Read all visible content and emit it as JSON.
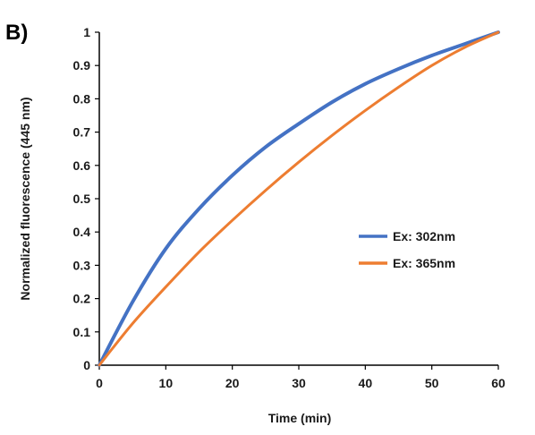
{
  "panel_label": "B)",
  "chart_data": {
    "type": "line",
    "title": "",
    "xlabel": "Time (min)",
    "ylabel": "Normalized fluorescence (445 nm)",
    "xlim": [
      0,
      60
    ],
    "ylim": [
      0,
      1
    ],
    "x_ticks": [
      0,
      10,
      20,
      30,
      40,
      50,
      60
    ],
    "y_ticks": [
      0,
      0.1,
      0.2,
      0.3,
      0.4,
      0.5,
      0.6,
      0.7,
      0.8,
      0.9,
      1
    ],
    "y_tick_labels": [
      "0",
      "0.1",
      "0.2",
      "0.3",
      "0.4",
      "0.5",
      "0.6",
      "0.7",
      "0.8",
      "0.9",
      "1"
    ],
    "grid": false,
    "legend_position": "center-right",
    "series": [
      {
        "name": "Ex: 302nm",
        "color": "#4472C4",
        "x": [
          0,
          5,
          10,
          15,
          20,
          25,
          30,
          35,
          40,
          45,
          50,
          55,
          60
        ],
        "y": [
          0,
          0.19,
          0.35,
          0.47,
          0.57,
          0.655,
          0.725,
          0.79,
          0.845,
          0.89,
          0.93,
          0.965,
          1.0
        ]
      },
      {
        "name": "Ex: 365nm",
        "color": "#ED7D31",
        "x": [
          0,
          5,
          10,
          15,
          20,
          25,
          30,
          35,
          40,
          45,
          50,
          55,
          60
        ],
        "y": [
          0,
          0.125,
          0.235,
          0.34,
          0.435,
          0.525,
          0.61,
          0.69,
          0.765,
          0.835,
          0.9,
          0.955,
          1.0
        ]
      }
    ]
  }
}
